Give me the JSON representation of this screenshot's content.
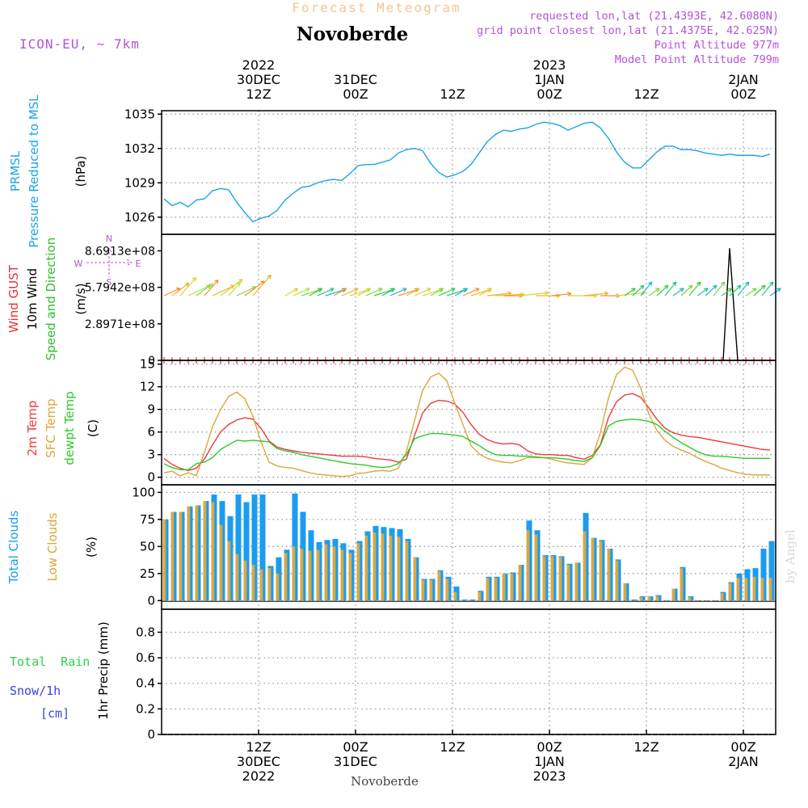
{
  "header": {
    "title_top": "Forecast Meteogram",
    "location": "Novoberde",
    "model": "ICON-EU, ~ 7km",
    "info_lines": [
      "requested lon,lat (21.4393E, 42.6080N)",
      "grid point closest lon,lat (21.4375E, 42.625N)",
      "Point Altitude 977m",
      "Model Point Altitude 799m"
    ],
    "watermark": "by Angel",
    "footer_location": "Novoberde"
  },
  "time_axis": {
    "top_labels": [
      {
        "t": 12,
        "lines": [
          "2022",
          "30DEC",
          "12Z"
        ]
      },
      {
        "t": 24,
        "lines": [
          "31DEC",
          "00Z"
        ]
      },
      {
        "t": 36,
        "lines": [
          "12Z"
        ]
      },
      {
        "t": 48,
        "lines": [
          "2023",
          "1JAN",
          "00Z"
        ]
      },
      {
        "t": 60,
        "lines": [
          "12Z"
        ]
      },
      {
        "t": 72,
        "lines": [
          "2JAN",
          "00Z"
        ]
      }
    ],
    "bottom_labels": [
      {
        "t": 12,
        "lines": [
          "12Z",
          "30DEC",
          "2022"
        ]
      },
      {
        "t": 24,
        "lines": [
          "00Z",
          "31DEC"
        ]
      },
      {
        "t": 36,
        "lines": [
          "12Z"
        ]
      },
      {
        "t": 48,
        "lines": [
          "00Z",
          "1JAN",
          "2023"
        ]
      },
      {
        "t": 60,
        "lines": [
          "12Z"
        ]
      },
      {
        "t": 72,
        "lines": [
          "00Z",
          "2JAN"
        ]
      }
    ]
  },
  "colors": {
    "pressure": "#1aa3e8",
    "gust": "#e8303a",
    "wind": "#000000",
    "speed_dir": "#2fbf2f",
    "temp2m": "#ee3a3a",
    "sfc": "#dca63a",
    "dewpt": "#2ec92e",
    "total_clouds": "#1a9cf0",
    "low_clouds": "#d9a844",
    "rain": "#2ccf4a",
    "snow": "#3a44e0",
    "info": "#b452d6",
    "title_top": "#f0c890"
  },
  "chart_data": [
    {
      "panel": "pressure",
      "type": "line",
      "ylabel_lines": [
        "PRMSL",
        "Pressure Reduced to MSL"
      ],
      "unit": "(hPa)",
      "yticks": [
        1026,
        1029,
        1032,
        1035
      ],
      "ylim": [
        1024.5,
        1035.3
      ],
      "grid": true,
      "x": [
        0,
        1,
        2,
        3,
        4,
        5,
        6,
        7,
        8,
        9,
        10,
        11,
        12,
        13,
        14,
        15,
        16,
        17,
        18,
        19,
        20,
        21,
        22,
        23,
        24,
        25,
        26,
        27,
        28,
        29,
        30,
        31,
        32,
        33,
        34,
        35,
        36,
        37,
        38,
        39,
        40,
        41,
        42,
        43,
        44,
        45,
        46,
        47,
        48,
        49,
        50,
        51,
        52,
        53,
        54,
        55,
        56,
        57,
        58,
        59,
        60,
        61,
        62,
        63,
        64,
        65,
        66,
        67,
        68,
        69,
        70,
        71,
        72,
        73,
        74,
        75
      ],
      "values": [
        1027.6,
        1027.0,
        1027.3,
        1026.9,
        1027.5,
        1027.6,
        1028.3,
        1028.5,
        1028.4,
        1027.3,
        1026.4,
        1025.6,
        1025.9,
        1026.1,
        1026.6,
        1027.5,
        1028.1,
        1028.6,
        1028.7,
        1029.0,
        1029.2,
        1029.3,
        1029.2,
        1029.8,
        1030.5,
        1030.6,
        1030.6,
        1030.8,
        1031.0,
        1031.6,
        1031.9,
        1032.0,
        1031.8,
        1030.7,
        1029.9,
        1029.5,
        1029.7,
        1030.0,
        1030.6,
        1031.6,
        1032.6,
        1033.2,
        1033.6,
        1033.5,
        1033.7,
        1033.8,
        1034.1,
        1034.3,
        1034.2,
        1034.0,
        1033.6,
        1033.9,
        1034.2,
        1034.3,
        1033.8,
        1032.9,
        1031.7,
        1030.8,
        1030.3,
        1030.3,
        1031.0,
        1031.7,
        1032.2,
        1032.2,
        1031.9,
        1031.9,
        1031.8,
        1031.6,
        1031.5,
        1031.4,
        1031.5,
        1031.4,
        1031.4,
        1031.4,
        1031.3,
        1031.5
      ]
    },
    {
      "panel": "wind",
      "type": "line",
      "ylabel_lines": [
        "Wind GUST",
        "10m Wind",
        "Speed and Direction"
      ],
      "unit": "(m/s)",
      "yticks": [
        0,
        289710000,
        579420000,
        869130000
      ],
      "ytick_labels": [
        "0",
        "2.8971e+08",
        "5.7942e+08",
        "8.6913e+08"
      ],
      "ylim": [
        0,
        1000000000
      ],
      "compass": [
        "N",
        "W",
        "E",
        "S"
      ],
      "gust_x": [
        69.5,
        70.3,
        71.3
      ],
      "gust_values": [
        0,
        890000000,
        0
      ],
      "wind_values_series": "0 at every step",
      "arrows_note": "direction arrows coloured by speed"
    },
    {
      "panel": "temperature",
      "type": "line",
      "ylabel_lines": [
        "2m Temp",
        "SFC Temp",
        "dewpt Temp"
      ],
      "unit": "(C)",
      "yticks": [
        0,
        3,
        6,
        9,
        12,
        15
      ],
      "ylim": [
        -1,
        15.5
      ],
      "grid": true,
      "series": [
        {
          "name": "2m Temp",
          "values": [
            2.5,
            1.7,
            1.2,
            0.9,
            1.2,
            2.4,
            4.3,
            6.0,
            7.0,
            7.6,
            7.9,
            7.7,
            6.5,
            4.8,
            4.0,
            3.7,
            3.5,
            3.3,
            3.2,
            3.1,
            3.0,
            2.9,
            2.8,
            2.8,
            2.8,
            2.7,
            2.5,
            2.4,
            2.3,
            2.0,
            2.4,
            5.5,
            8.5,
            9.8,
            10.2,
            10.1,
            9.7,
            8.6,
            7.0,
            5.7,
            5.0,
            4.6,
            4.4,
            4.5,
            4.3,
            3.5,
            3.1,
            3.0,
            3.0,
            2.9,
            2.9,
            2.6,
            2.4,
            2.9,
            4.3,
            7.9,
            10.0,
            10.9,
            11.1,
            10.6,
            9.2,
            7.7,
            6.5,
            5.9,
            5.6,
            5.4,
            5.3,
            5.1,
            4.9,
            4.7,
            4.5,
            4.3,
            4.1,
            3.9,
            3.7,
            3.6
          ]
        },
        {
          "name": "SFC Temp",
          "values": [
            0.6,
            0.8,
            0.2,
            0.6,
            0.2,
            3.3,
            6.7,
            9.0,
            10.7,
            11.3,
            10.4,
            8.1,
            4.7,
            2.0,
            1.5,
            1.3,
            1.2,
            0.9,
            0.6,
            0.4,
            0.3,
            0.2,
            0.1,
            0.2,
            0.5,
            0.6,
            0.8,
            0.9,
            0.8,
            1.2,
            3.4,
            7.5,
            11.5,
            13.3,
            13.8,
            12.8,
            9.8,
            7.0,
            4.2,
            3.1,
            2.5,
            2.2,
            2.0,
            1.9,
            2.2,
            2.6,
            2.6,
            2.6,
            2.4,
            2.1,
            1.9,
            1.8,
            1.7,
            2.6,
            5.9,
            10.5,
            13.6,
            14.6,
            14.2,
            11.8,
            8.4,
            6.2,
            4.9,
            4.1,
            3.6,
            3.2,
            2.6,
            2.1,
            1.7,
            1.2,
            0.9,
            0.6,
            0.4,
            0.3,
            0.3,
            0.3
          ]
        },
        {
          "name": "dewpt Temp",
          "values": [
            1.8,
            1.3,
            1.0,
            1.0,
            1.8,
            2.0,
            2.6,
            3.7,
            4.3,
            4.9,
            4.8,
            4.9,
            4.8,
            4.7,
            3.8,
            3.5,
            3.3,
            3.0,
            2.8,
            2.6,
            2.4,
            2.2,
            2.0,
            1.8,
            1.7,
            1.6,
            1.4,
            1.3,
            1.4,
            1.8,
            3.0,
            5.1,
            5.5,
            5.8,
            5.8,
            5.7,
            5.6,
            5.4,
            4.8,
            4.2,
            3.5,
            3.0,
            2.9,
            2.9,
            2.8,
            2.8,
            2.7,
            2.6,
            2.6,
            2.5,
            2.4,
            2.2,
            2.1,
            2.6,
            4.2,
            6.8,
            7.4,
            7.6,
            7.7,
            7.6,
            7.4,
            7.0,
            6.1,
            5.3,
            4.6,
            4.0,
            3.4,
            3.0,
            2.8,
            2.8,
            2.7,
            2.6,
            2.5,
            2.5,
            2.5,
            2.5
          ]
        }
      ]
    },
    {
      "panel": "clouds",
      "type": "bar",
      "ylabel_lines": [
        "Total Clouds",
        "Low Clouds"
      ],
      "unit": "(%)",
      "yticks": [
        0,
        25,
        50,
        75,
        100
      ],
      "ylim": [
        -8,
        107
      ],
      "grid": true,
      "series": [
        {
          "name": "Total Clouds",
          "values": [
            75,
            82,
            82,
            87,
            88,
            92,
            98,
            92,
            78,
            98,
            91,
            98,
            98,
            32,
            40,
            47,
            99,
            82,
            65,
            54,
            56,
            57,
            53,
            47,
            55,
            64,
            69,
            68,
            67,
            66,
            57,
            40,
            20,
            20,
            28,
            22,
            13,
            1,
            1,
            9,
            22,
            22,
            25,
            26,
            33,
            74,
            65,
            42,
            42,
            41,
            34,
            35,
            81,
            58,
            56,
            48,
            38,
            16,
            1,
            4,
            4,
            5,
            0,
            11,
            31,
            4,
            0,
            0,
            0,
            8,
            17,
            25,
            29,
            30,
            48,
            55
          ]
        },
        {
          "name": "Low Clouds",
          "values": [
            75,
            82,
            82,
            87,
            88,
            92,
            91,
            70,
            55,
            43,
            37,
            33,
            29,
            30,
            25,
            44,
            50,
            48,
            46,
            47,
            52,
            50,
            47,
            44,
            53,
            60,
            63,
            62,
            60,
            59,
            55,
            40,
            19,
            19,
            27,
            20,
            8,
            0,
            0,
            8,
            21,
            21,
            25,
            25,
            33,
            65,
            61,
            41,
            41,
            40,
            33,
            35,
            64,
            58,
            55,
            48,
            37,
            16,
            0,
            3,
            4,
            4,
            0,
            11,
            30,
            3,
            0,
            0,
            0,
            7,
            16,
            21,
            21,
            22,
            21,
            21
          ]
        }
      ]
    },
    {
      "panel": "precip",
      "type": "bar",
      "ylabel_lines": [
        "Total  Rain",
        "Snow/1h",
        "[cm]"
      ],
      "unit": "1hr Precip (mm)",
      "yticks": [
        0,
        0.2,
        0.4,
        0.6,
        0.8
      ],
      "ylim": [
        0,
        0.98
      ],
      "grid": true,
      "values_note": "0 for every hour"
    }
  ]
}
